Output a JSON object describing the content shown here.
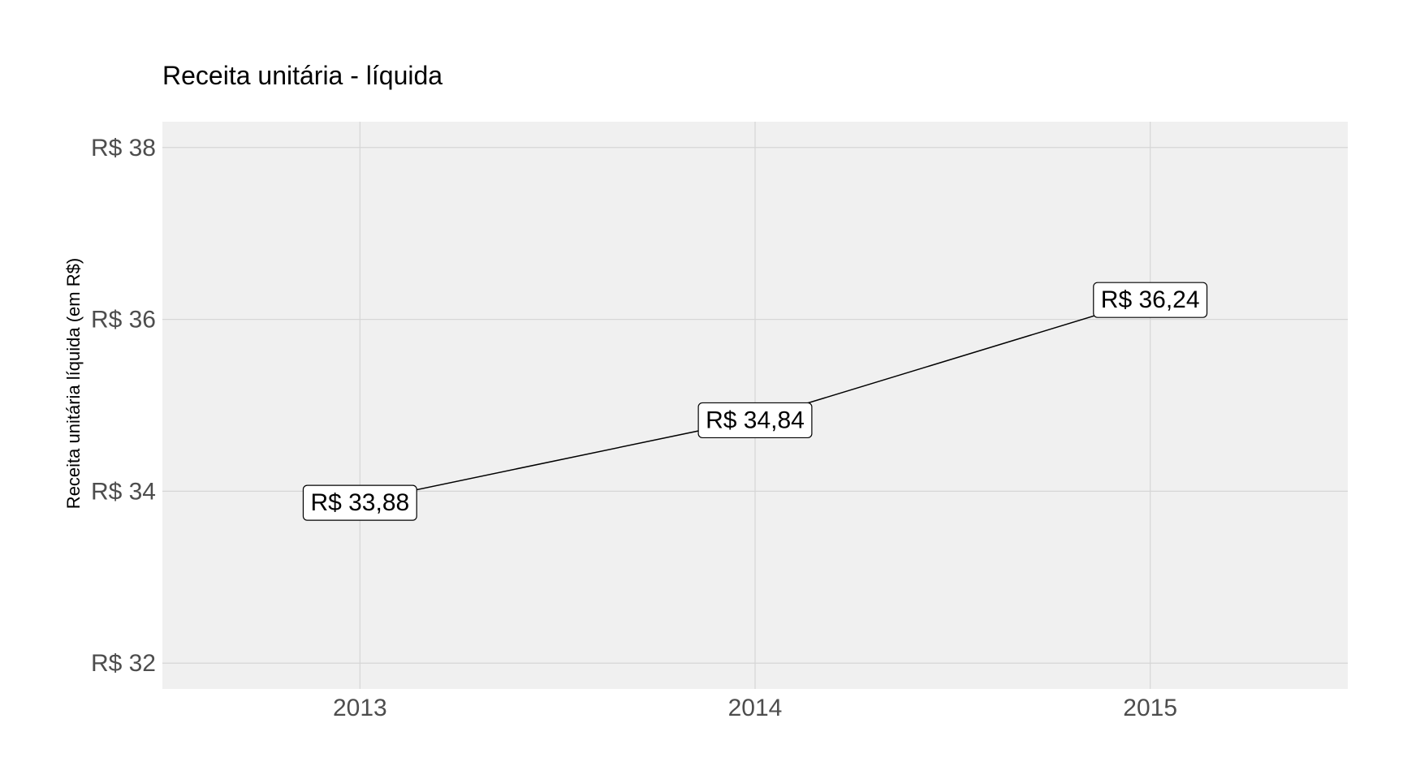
{
  "chart_data": {
    "type": "line",
    "title": "Receita unitária - líquida",
    "xlabel": "",
    "ylabel": "Receita unitária líquida (em R$)",
    "categories": [
      "2013",
      "2014",
      "2015"
    ],
    "series": [
      {
        "values": [
          33.88,
          34.84,
          36.24
        ],
        "data_labels": [
          "R$ 33,88",
          "R$ 34,84",
          "R$ 36,24"
        ]
      }
    ],
    "yticks": [
      32,
      34,
      36,
      38
    ],
    "ytick_labels": [
      "R$ 32",
      "R$ 34",
      "R$ 36",
      "R$ 38"
    ],
    "ylim": [
      31.7,
      38.3
    ],
    "grid": true,
    "legend": "none",
    "colors": {
      "panel_background": "#f0f0f0",
      "grid": "#d6d6d6",
      "line": "#000000",
      "tick_text": "#4d4d4d"
    }
  }
}
